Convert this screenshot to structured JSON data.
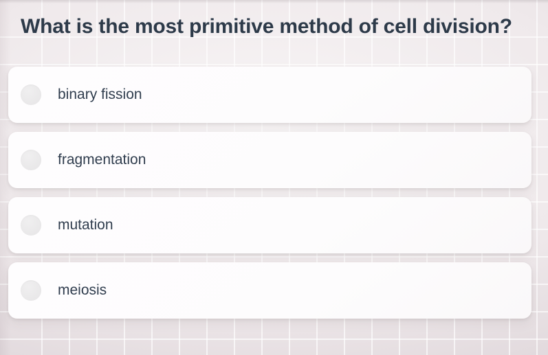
{
  "question": {
    "text": "What is the most primitive method of cell division?"
  },
  "options": [
    {
      "label": "binary fission",
      "selected": false
    },
    {
      "label": "fragmentation",
      "selected": false
    },
    {
      "label": "mutation",
      "selected": false
    },
    {
      "label": "meiosis",
      "selected": false
    }
  ],
  "colors": {
    "question_text": "#2d3a49",
    "option_text": "#303d4e",
    "card_bg": "#fdfcfd",
    "radio_bg": "#e9e8e9",
    "bg_center": "#f8f5f6",
    "bg_edge": "#ddd4d8"
  }
}
